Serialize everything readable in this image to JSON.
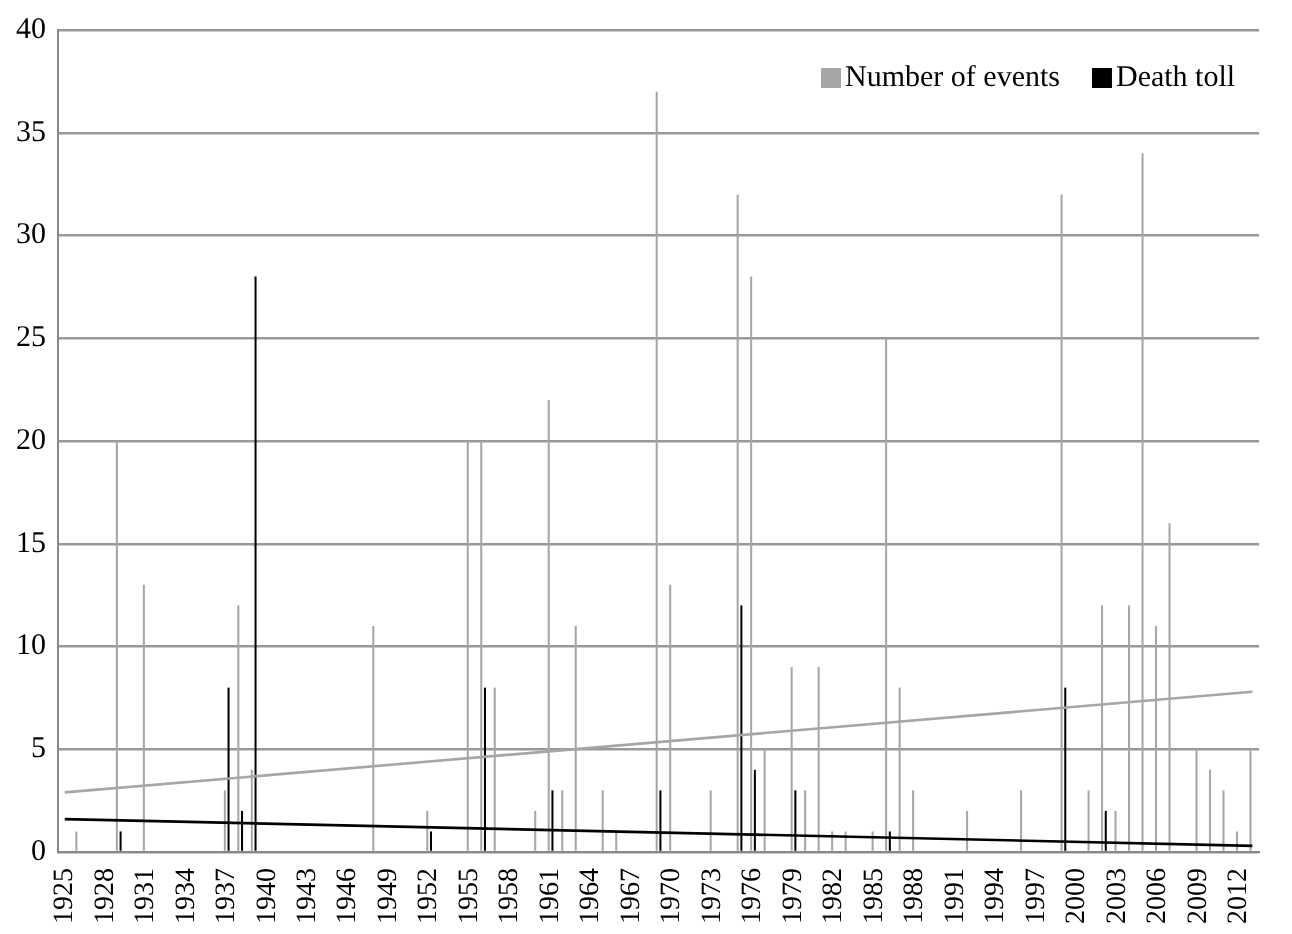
{
  "chart_data": {
    "type": "bar",
    "categories": [
      "1925",
      null,
      null,
      "1928",
      null,
      null,
      "1931",
      null,
      null,
      "1934",
      null,
      null,
      "1937",
      null,
      null,
      "1940",
      null,
      null,
      "1943",
      null,
      null,
      "1946",
      null,
      null,
      "1949",
      null,
      null,
      "1952",
      null,
      null,
      "1955",
      null,
      null,
      "1958",
      null,
      null,
      "1961",
      null,
      null,
      "1964",
      null,
      null,
      "1967",
      null,
      null,
      "1970",
      null,
      null,
      "1973",
      null,
      null,
      "1976",
      null,
      null,
      "1979",
      null,
      null,
      "1982",
      null,
      null,
      "1985",
      null,
      null,
      "1988",
      null,
      null,
      "1991",
      null,
      null,
      "1994",
      null,
      null,
      "1997",
      null,
      null,
      "2000",
      null,
      null,
      "2003",
      null,
      null,
      "2006",
      null,
      null,
      "2009",
      null,
      null,
      "2012",
      null
    ],
    "series": [
      {
        "name": "Number of events",
        "color": "#a6a6a6",
        "values": [
          0,
          1,
          0,
          0,
          20,
          0,
          13,
          0,
          0,
          0,
          0,
          0,
          3,
          12,
          4,
          0,
          0,
          0,
          0,
          0,
          0,
          0,
          0,
          11,
          0,
          0,
          0,
          2,
          0,
          0,
          20,
          20,
          8,
          0,
          0,
          2,
          22,
          3,
          11,
          0,
          3,
          1,
          0,
          0,
          37,
          13,
          0,
          0,
          3,
          0,
          32,
          28,
          5,
          0,
          9,
          3,
          9,
          1,
          1,
          0,
          1,
          25,
          8,
          3,
          0,
          0,
          0,
          2,
          0,
          0,
          0,
          3,
          0,
          0,
          32,
          0,
          3,
          12,
          2,
          12,
          34,
          11,
          16,
          0,
          5,
          4,
          3,
          1,
          5
        ]
      },
      {
        "name": "Death toll",
        "color": "#000000",
        "values": [
          0,
          0,
          0,
          0,
          1,
          0,
          0,
          0,
          0,
          0,
          0,
          0,
          8,
          2,
          28,
          0,
          0,
          0,
          0,
          0,
          0,
          0,
          0,
          0,
          0,
          0,
          0,
          1,
          0,
          0,
          0,
          8,
          0,
          0,
          0,
          0,
          3,
          0,
          0,
          0,
          0,
          0,
          0,
          0,
          3,
          0,
          0,
          0,
          0,
          0,
          12,
          4,
          0,
          0,
          3,
          0,
          0,
          0,
          0,
          0,
          0,
          1,
          0,
          0,
          0,
          0,
          0,
          0,
          0,
          0,
          0,
          0,
          0,
          0,
          8,
          0,
          0,
          2,
          0,
          0,
          0,
          0,
          0,
          0,
          0,
          0,
          0,
          0,
          0
        ]
      },
      {
        "type": "line",
        "color": "#a6a6a6",
        "values": [
          2.9,
          null,
          null,
          null,
          null,
          null,
          null,
          null,
          null,
          null,
          null,
          null,
          null,
          null,
          null,
          null,
          null,
          null,
          null,
          null,
          null,
          null,
          null,
          null,
          null,
          null,
          null,
          null,
          null,
          null,
          null,
          null,
          null,
          null,
          null,
          null,
          null,
          null,
          null,
          null,
          null,
          null,
          null,
          null,
          null,
          null,
          null,
          null,
          null,
          null,
          null,
          null,
          null,
          null,
          null,
          null,
          null,
          null,
          null,
          null,
          null,
          null,
          null,
          null,
          null,
          null,
          null,
          null,
          null,
          null,
          null,
          null,
          null,
          null,
          null,
          null,
          null,
          null,
          null,
          null,
          null,
          null,
          null,
          null,
          null,
          null,
          null,
          null,
          7.8
        ]
      },
      {
        "type": "line",
        "color": "#000000",
        "values": [
          1.6,
          null,
          null,
          null,
          null,
          null,
          null,
          null,
          null,
          null,
          null,
          null,
          null,
          null,
          null,
          null,
          null,
          null,
          null,
          null,
          null,
          null,
          null,
          null,
          null,
          null,
          null,
          null,
          null,
          null,
          null,
          null,
          null,
          null,
          null,
          null,
          null,
          null,
          null,
          null,
          null,
          null,
          null,
          null,
          null,
          null,
          null,
          null,
          null,
          null,
          null,
          null,
          null,
          null,
          null,
          null,
          null,
          null,
          null,
          null,
          null,
          null,
          null,
          null,
          null,
          null,
          null,
          null,
          null,
          null,
          null,
          null,
          null,
          null,
          null,
          null,
          null,
          null,
          null,
          null,
          null,
          null,
          null,
          null,
          null,
          null,
          null,
          null,
          0.3
        ]
      }
    ],
    "ylim": [
      0,
      40
    ],
    "yticks": [
      0,
      5,
      10,
      15,
      20,
      25,
      30,
      35,
      40
    ],
    "grid": "y",
    "legend": "top right",
    "marker": "none"
  }
}
